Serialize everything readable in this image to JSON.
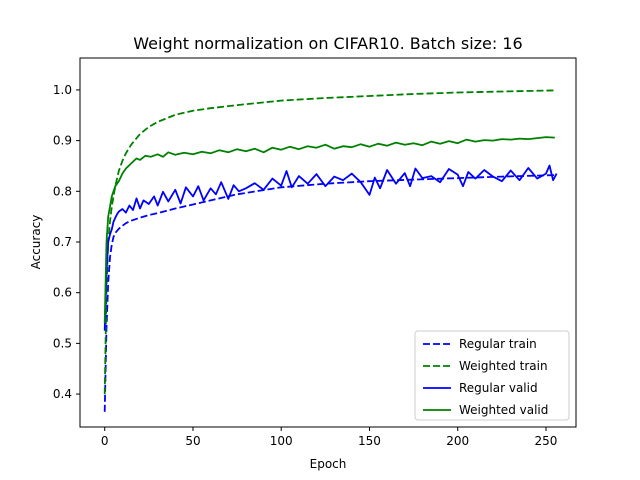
{
  "chart_data": {
    "type": "line",
    "title": "Weight normalization on CIFAR10. Batch size: 16",
    "xlabel": "Epoch",
    "ylabel": "Accuracy",
    "xlim": [
      -14,
      267
    ],
    "ylim": [
      0.335,
      1.063
    ],
    "xticks": [
      0,
      50,
      100,
      150,
      200,
      250
    ],
    "yticks": [
      0.4,
      0.5,
      0.6,
      0.7,
      0.8,
      0.9,
      1.0
    ],
    "xtick_labels": [
      "0",
      "50",
      "100",
      "150",
      "200",
      "250"
    ],
    "ytick_labels": [
      "0.4",
      "0.5",
      "0.6",
      "0.7",
      "0.8",
      "0.9",
      "1.0"
    ],
    "grid": false,
    "legend_position": "lower right",
    "series": [
      {
        "name": "Regular train",
        "color": "#0000ff",
        "style": "dashed",
        "x": [
          0,
          1,
          2,
          3,
          4,
          5,
          6,
          8,
          10,
          12,
          15,
          20,
          25,
          30,
          40,
          50,
          60,
          75,
          100,
          125,
          150,
          175,
          200,
          225,
          255
        ],
        "y": [
          0.365,
          0.53,
          0.62,
          0.67,
          0.695,
          0.71,
          0.718,
          0.726,
          0.732,
          0.737,
          0.742,
          0.748,
          0.753,
          0.757,
          0.766,
          0.774,
          0.782,
          0.794,
          0.808,
          0.815,
          0.82,
          0.823,
          0.826,
          0.829,
          0.832
        ]
      },
      {
        "name": "Weighted train",
        "color": "#008000",
        "style": "dashed",
        "x": [
          0,
          1,
          2,
          3,
          4,
          5,
          6,
          8,
          10,
          12,
          15,
          20,
          25,
          30,
          40,
          50,
          60,
          75,
          100,
          125,
          150,
          175,
          200,
          225,
          255
        ],
        "y": [
          0.4,
          0.61,
          0.7,
          0.74,
          0.77,
          0.79,
          0.81,
          0.84,
          0.86,
          0.875,
          0.892,
          0.913,
          0.927,
          0.937,
          0.951,
          0.959,
          0.964,
          0.97,
          0.979,
          0.984,
          0.988,
          0.992,
          0.995,
          0.997,
          0.999
        ]
      },
      {
        "name": "Regular valid",
        "color": "#0000ff",
        "style": "solid",
        "x": [
          0,
          1,
          2,
          3,
          4,
          5,
          6,
          7,
          8,
          10,
          12,
          14,
          16,
          18,
          20,
          22,
          25,
          28,
          30,
          33,
          36,
          40,
          43,
          46,
          50,
          53,
          56,
          60,
          63,
          66,
          70,
          73,
          76,
          80,
          85,
          90,
          95,
          100,
          103,
          106,
          110,
          115,
          120,
          125,
          130,
          135,
          140,
          145,
          150,
          153,
          156,
          160,
          165,
          170,
          173,
          176,
          180,
          185,
          190,
          195,
          200,
          203,
          206,
          210,
          215,
          220,
          225,
          230,
          235,
          240,
          245,
          250,
          252,
          254,
          256
        ],
        "y": [
          0.525,
          0.64,
          0.7,
          0.715,
          0.725,
          0.74,
          0.748,
          0.755,
          0.76,
          0.765,
          0.758,
          0.772,
          0.763,
          0.786,
          0.766,
          0.782,
          0.775,
          0.79,
          0.772,
          0.799,
          0.78,
          0.803,
          0.776,
          0.808,
          0.79,
          0.81,
          0.782,
          0.806,
          0.794,
          0.818,
          0.785,
          0.812,
          0.8,
          0.806,
          0.816,
          0.803,
          0.825,
          0.811,
          0.84,
          0.808,
          0.83,
          0.815,
          0.834,
          0.81,
          0.829,
          0.822,
          0.835,
          0.818,
          0.793,
          0.827,
          0.806,
          0.842,
          0.815,
          0.836,
          0.81,
          0.845,
          0.826,
          0.83,
          0.818,
          0.844,
          0.833,
          0.81,
          0.838,
          0.825,
          0.842,
          0.829,
          0.82,
          0.841,
          0.822,
          0.846,
          0.825,
          0.835,
          0.851,
          0.822,
          0.835
        ]
      },
      {
        "name": "Weighted valid",
        "color": "#008000",
        "style": "solid",
        "x": [
          0,
          1,
          2,
          3,
          4,
          5,
          6,
          8,
          10,
          12,
          15,
          18,
          20,
          23,
          26,
          30,
          33,
          36,
          40,
          45,
          50,
          55,
          60,
          65,
          70,
          75,
          80,
          85,
          90,
          95,
          100,
          105,
          110,
          115,
          120,
          125,
          130,
          135,
          140,
          145,
          150,
          155,
          160,
          165,
          170,
          175,
          180,
          185,
          190,
          195,
          200,
          205,
          210,
          215,
          220,
          225,
          230,
          235,
          240,
          245,
          250,
          255
        ],
        "y": [
          0.54,
          0.7,
          0.75,
          0.77,
          0.79,
          0.8,
          0.81,
          0.82,
          0.835,
          0.845,
          0.855,
          0.865,
          0.862,
          0.87,
          0.868,
          0.873,
          0.868,
          0.877,
          0.872,
          0.876,
          0.873,
          0.878,
          0.875,
          0.881,
          0.877,
          0.883,
          0.879,
          0.884,
          0.877,
          0.886,
          0.882,
          0.888,
          0.883,
          0.889,
          0.886,
          0.892,
          0.884,
          0.889,
          0.887,
          0.893,
          0.888,
          0.894,
          0.89,
          0.896,
          0.892,
          0.895,
          0.891,
          0.898,
          0.894,
          0.899,
          0.895,
          0.902,
          0.898,
          0.901,
          0.9,
          0.903,
          0.902,
          0.904,
          0.903,
          0.905,
          0.907,
          0.906
        ]
      }
    ]
  }
}
